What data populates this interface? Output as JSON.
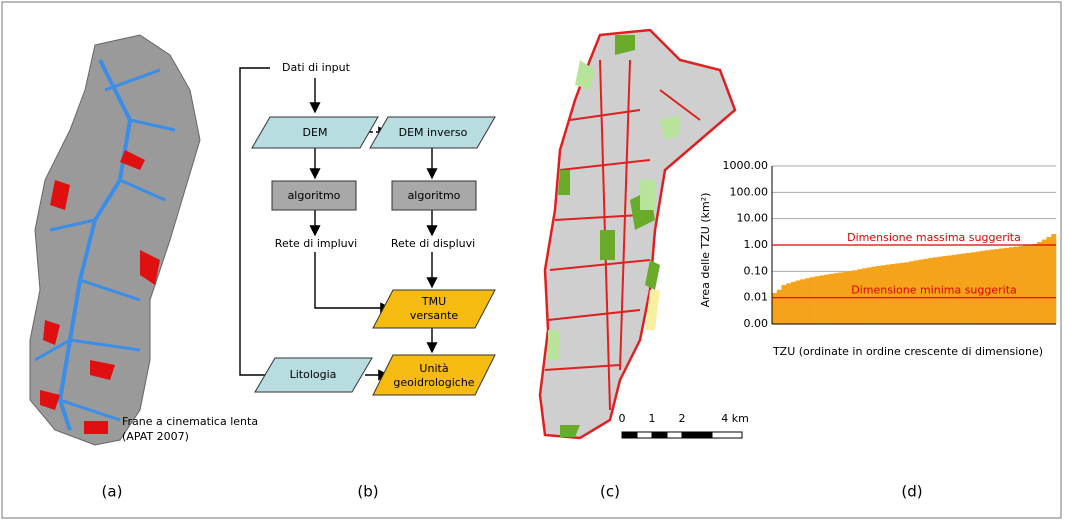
{
  "panel_a": {
    "legend": [
      "Frane a cinematica lenta",
      "(APAT 2007)"
    ],
    "caption": "(a)"
  },
  "panel_b": {
    "caption": "(b)",
    "nodes": {
      "input": "Dati di input",
      "dem": "DEM",
      "dem_inv": "DEM inverso",
      "alg1": "algoritmo",
      "alg2": "algoritmo",
      "rete1": "Rete di impluvi",
      "rete2": "Rete di displuvi",
      "tmu": [
        "TMU",
        "versante"
      ],
      "lito": "Litologia",
      "unita": [
        "Unità",
        "geoidrologiche"
      ]
    }
  },
  "panel_c": {
    "caption": "(c)",
    "scale": [
      "0",
      "1",
      "2",
      "4 km"
    ]
  },
  "panel_d": {
    "caption": "(d)",
    "chart_data": {
      "type": "bar",
      "ylabel": "Area delle TZU (km²)",
      "xlabel": "TZU (ordinate in ordine crescente di dimensione)",
      "color": "#f5a31a",
      "log_y": true,
      "grid": true,
      "ylim": [
        0.001,
        1000
      ],
      "yticks": [
        {
          "value": 0.001,
          "label": "0.00"
        },
        {
          "value": 0.01,
          "label": "0.01"
        },
        {
          "value": 0.1,
          "label": "0.10"
        },
        {
          "value": 1,
          "label": "1.00"
        },
        {
          "value": 10,
          "label": "10.00"
        },
        {
          "value": 100,
          "label": "100.00"
        },
        {
          "value": 1000,
          "label": "1000.00"
        }
      ],
      "values": [
        0.015,
        0.02,
        0.03,
        0.035,
        0.04,
        0.045,
        0.05,
        0.055,
        0.06,
        0.065,
        0.07,
        0.075,
        0.08,
        0.085,
        0.09,
        0.095,
        0.1,
        0.11,
        0.12,
        0.13,
        0.14,
        0.15,
        0.16,
        0.17,
        0.18,
        0.19,
        0.2,
        0.21,
        0.22,
        0.24,
        0.26,
        0.28,
        0.3,
        0.32,
        0.34,
        0.36,
        0.38,
        0.4,
        0.42,
        0.45,
        0.48,
        0.5,
        0.53,
        0.56,
        0.6,
        0.63,
        0.67,
        0.7,
        0.74,
        0.78,
        0.82,
        0.86,
        0.9,
        0.95,
        1.0,
        1.1,
        1.3,
        1.6,
        2.0,
        2.6
      ],
      "reference_lines": [
        {
          "value": 1,
          "label": "Dimensione massima suggerita",
          "color": "#e00000"
        },
        {
          "value": 0.01,
          "label": "Dimensione minima suggerita",
          "color": "#e00000"
        }
      ]
    }
  }
}
